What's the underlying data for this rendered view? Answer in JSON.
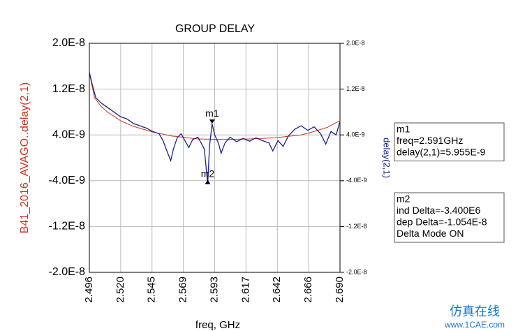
{
  "chart_data": {
    "type": "line",
    "title": "GROUP DELAY",
    "x_label": "freq, GHz",
    "xlim": [
      2.496,
      2.69
    ],
    "xticks": [
      {
        "value": 2.496,
        "label": "2.496"
      },
      {
        "value": 2.52025,
        "label": "2.520"
      },
      {
        "value": 2.5445,
        "label": "2.545"
      },
      {
        "value": 2.56875,
        "label": "2.569"
      },
      {
        "value": 2.593,
        "label": "2.593"
      },
      {
        "value": 2.61725,
        "label": "2.617"
      },
      {
        "value": 2.6415,
        "label": "2.642"
      },
      {
        "value": 2.66575,
        "label": "2.666"
      },
      {
        "value": 2.69,
        "label": "2.690"
      }
    ],
    "ylim": [
      -2e-08,
      2e-08
    ],
    "yticks": [
      {
        "value": 2e-08,
        "label": "2.0E-8"
      },
      {
        "value": 1.2e-08,
        "label": "1.2E-8"
      },
      {
        "value": 4e-09,
        "label": "4.0E-9"
      },
      {
        "value": -4e-09,
        "label": "-4.0E-9"
      },
      {
        "value": -1.2e-08,
        "label": "-1.2E-8"
      },
      {
        "value": -2e-08,
        "label": "-2.0E-8"
      }
    ],
    "y2lim": [
      -2e-08,
      2e-08
    ],
    "y2ticks": [
      {
        "value": 2e-08,
        "label": "2.0E-8"
      },
      {
        "value": 1.2e-08,
        "label": "1.2E-8"
      },
      {
        "value": 4e-09,
        "label": "4.0E-9"
      },
      {
        "value": -4e-09,
        "label": "-4.0E-9"
      },
      {
        "value": -1.2e-08,
        "label": "-1.2E-8"
      },
      {
        "value": -2e-08,
        "label": "-2.0E-8"
      }
    ],
    "grid": true,
    "series": [
      {
        "name": "B41_2016_AVAGO..delay(2,1)",
        "color": "#cc3322",
        "x": [
          2.496,
          2.5,
          2.505,
          2.51,
          2.52,
          2.53,
          2.545,
          2.56,
          2.58,
          2.6,
          2.62,
          2.64,
          2.66,
          2.67,
          2.68,
          2.69
        ],
        "values": [
          1.48e-08,
          1.05e-08,
          9e-09,
          8e-09,
          6.5e-09,
          5.5e-09,
          4.5e-09,
          3.8e-09,
          3.3e-09,
          3.2e-09,
          3.3e-09,
          3.5e-09,
          4e-09,
          4.6e-09,
          5.3e-09,
          6.5e-09
        ]
      },
      {
        "name": "delay(2,1)",
        "color": "#1a237e",
        "axis": "y2",
        "x": [
          2.496,
          2.498,
          2.501,
          2.505,
          2.51,
          2.515,
          2.52,
          2.525,
          2.53,
          2.535,
          2.54,
          2.545,
          2.55,
          2.553,
          2.556,
          2.559,
          2.561,
          2.564,
          2.567,
          2.57,
          2.573,
          2.576,
          2.58,
          2.583,
          2.585,
          2.5876,
          2.589,
          2.591,
          2.593,
          2.596,
          2.598,
          2.601,
          2.605,
          2.61,
          2.615,
          2.62,
          2.625,
          2.63,
          2.635,
          2.638,
          2.642,
          2.646,
          2.65,
          2.655,
          2.66,
          2.665,
          2.67,
          2.675,
          2.679,
          2.683,
          2.687,
          2.69
        ],
        "values": [
          1.5e-08,
          1.3e-08,
          1.05e-08,
          9.6e-09,
          8.8e-09,
          8e-09,
          7.2e-09,
          6.8e-09,
          6e-09,
          5.6e-09,
          5.2e-09,
          4.6e-09,
          4.2e-09,
          3e-09,
          1.2e-09,
          -5e-10,
          1.5e-09,
          3.5e-09,
          4.2e-09,
          3e-09,
          1.8e-09,
          3.2e-09,
          3.6e-09,
          2.4e-09,
          1.5e-09,
          -4.585e-09,
          2e-09,
          5.955e-09,
          4e-09,
          2.5e-09,
          8e-10,
          2.6e-09,
          3.6e-09,
          2.8e-09,
          3.4e-09,
          2.9e-09,
          3.5e-09,
          3e-09,
          2.6e-09,
          1.2e-09,
          3e-09,
          2e-09,
          3.8e-09,
          5e-09,
          5.6e-09,
          4.8e-09,
          5.4e-09,
          4.2e-09,
          2.4e-09,
          4.6e-09,
          4e-09,
          6.4e-09
        ]
      }
    ],
    "markers": [
      {
        "name": "m1",
        "x": 2.591,
        "y": 5.955e-09,
        "lines": [
          "freq=2.591GHz",
          "delay(2,1)=5.955E-9"
        ]
      },
      {
        "name": "m2",
        "x": 2.5876,
        "y": -4.585e-09,
        "lines": [
          "ind Delta=-3.400E6",
          "dep Delta=-1.054E-8",
          "Delta Mode ON"
        ]
      }
    ],
    "watermark": [
      "仿真在线",
      "www.1CAE.com"
    ]
  }
}
